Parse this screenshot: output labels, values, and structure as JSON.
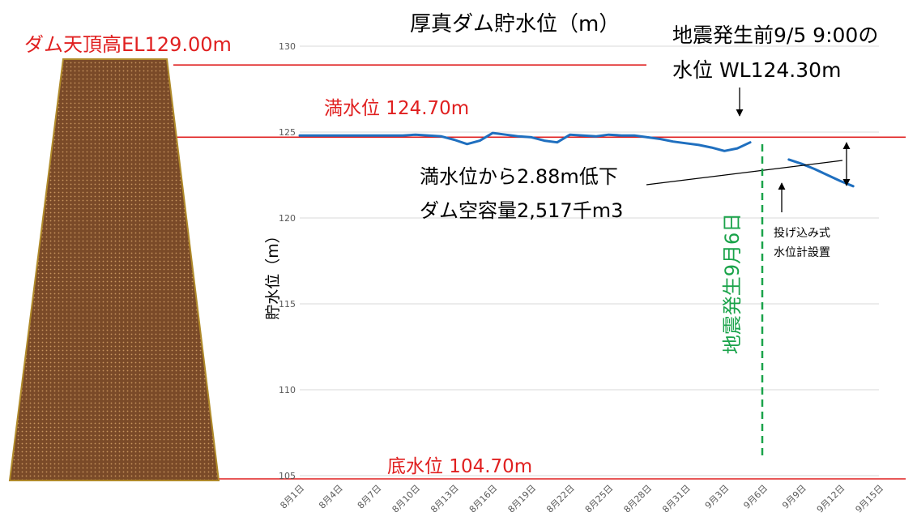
{
  "colors": {
    "series": "#1f6fbf",
    "red_line": "#e02020",
    "earthquake": "#1aa34a",
    "dam_fill": "#7a4a28",
    "dam_dot": "#c9955e",
    "dam_outline": "#b08a2a",
    "grid": "#d9d9d9",
    "tick_text": "#595959"
  },
  "annotations": {
    "dam_crest": "ダム天頂高EL129.00m",
    "full_level": "満水位 124.70m",
    "bottom_level": "底水位 104.70m",
    "pre_quake_line1": "地震発生前9/5 9:00の",
    "pre_quake_line2": "水位 WL124.30m",
    "drop_line1": "満水位から2.88m低下",
    "drop_line2": "ダム空容量2,517千m3",
    "earthquake": "地震発生9月6日",
    "gauge_line1": "投げ込み式",
    "gauge_line2": "水位計設置"
  },
  "chart_data": {
    "type": "line",
    "title": "厚真ダム貯水位（m）",
    "xlabel": "",
    "ylabel": "貯水位（m）",
    "ylim": [
      105,
      130
    ],
    "yticks": [
      105,
      110,
      115,
      120,
      125,
      130
    ],
    "xticks": [
      "8月1日",
      "8月4日",
      "8月7日",
      "8月10日",
      "8月13日",
      "8月16日",
      "8月19日",
      "8月22日",
      "8月25日",
      "8月28日",
      "8月31日",
      "9月3日",
      "9月6日",
      "9月9日",
      "9月12日",
      "9月15日"
    ],
    "x_day_range": [
      1,
      46
    ],
    "grid": true,
    "reference_lines": [
      {
        "label": "ダム天頂高",
        "value": 129.0
      },
      {
        "label": "満水位",
        "value": 124.7
      },
      {
        "label": "底水位",
        "value": 104.7
      }
    ],
    "series": [
      {
        "segment": "before",
        "points": [
          [
            "8月1日",
            124.8
          ],
          [
            "8月2日",
            124.8
          ],
          [
            "8月3日",
            124.8
          ],
          [
            "8月4日",
            124.8
          ],
          [
            "8月5日",
            124.8
          ],
          [
            "8月6日",
            124.8
          ],
          [
            "8月7日",
            124.8
          ],
          [
            "8月8日",
            124.8
          ],
          [
            "8月9日",
            124.8
          ],
          [
            "8月10日",
            124.85
          ],
          [
            "8月11日",
            124.8
          ],
          [
            "8月12日",
            124.75
          ],
          [
            "8月13日",
            124.55
          ],
          [
            "8月14日",
            124.3
          ],
          [
            "8月15日",
            124.5
          ],
          [
            "8月16日",
            124.95
          ],
          [
            "8月17日",
            124.85
          ],
          [
            "8月18日",
            124.75
          ],
          [
            "8月19日",
            124.7
          ],
          [
            "8月20日",
            124.5
          ],
          [
            "8月21日",
            124.4
          ],
          [
            "8月22日",
            124.85
          ],
          [
            "8月23日",
            124.8
          ],
          [
            "8月24日",
            124.75
          ],
          [
            "8月25日",
            124.85
          ],
          [
            "8月26日",
            124.8
          ],
          [
            "8月27日",
            124.8
          ],
          [
            "8月28日",
            124.7
          ],
          [
            "8月29日",
            124.6
          ],
          [
            "8月30日",
            124.45
          ],
          [
            "8月31日",
            124.35
          ],
          [
            "9月1日",
            124.25
          ],
          [
            "9月2日",
            124.1
          ],
          [
            "9月3日",
            123.9
          ],
          [
            "9月4日",
            124.05
          ],
          [
            "9月5日",
            124.4
          ]
        ]
      },
      {
        "segment": "after",
        "points": [
          [
            "9月8日",
            123.4
          ],
          [
            "9月9日",
            123.15
          ],
          [
            "9月10日",
            122.85
          ],
          [
            "9月11日",
            122.5
          ],
          [
            "9月12日",
            122.15
          ],
          [
            "9月13日",
            121.85
          ]
        ]
      }
    ],
    "earthquake_day": "9月6日"
  }
}
